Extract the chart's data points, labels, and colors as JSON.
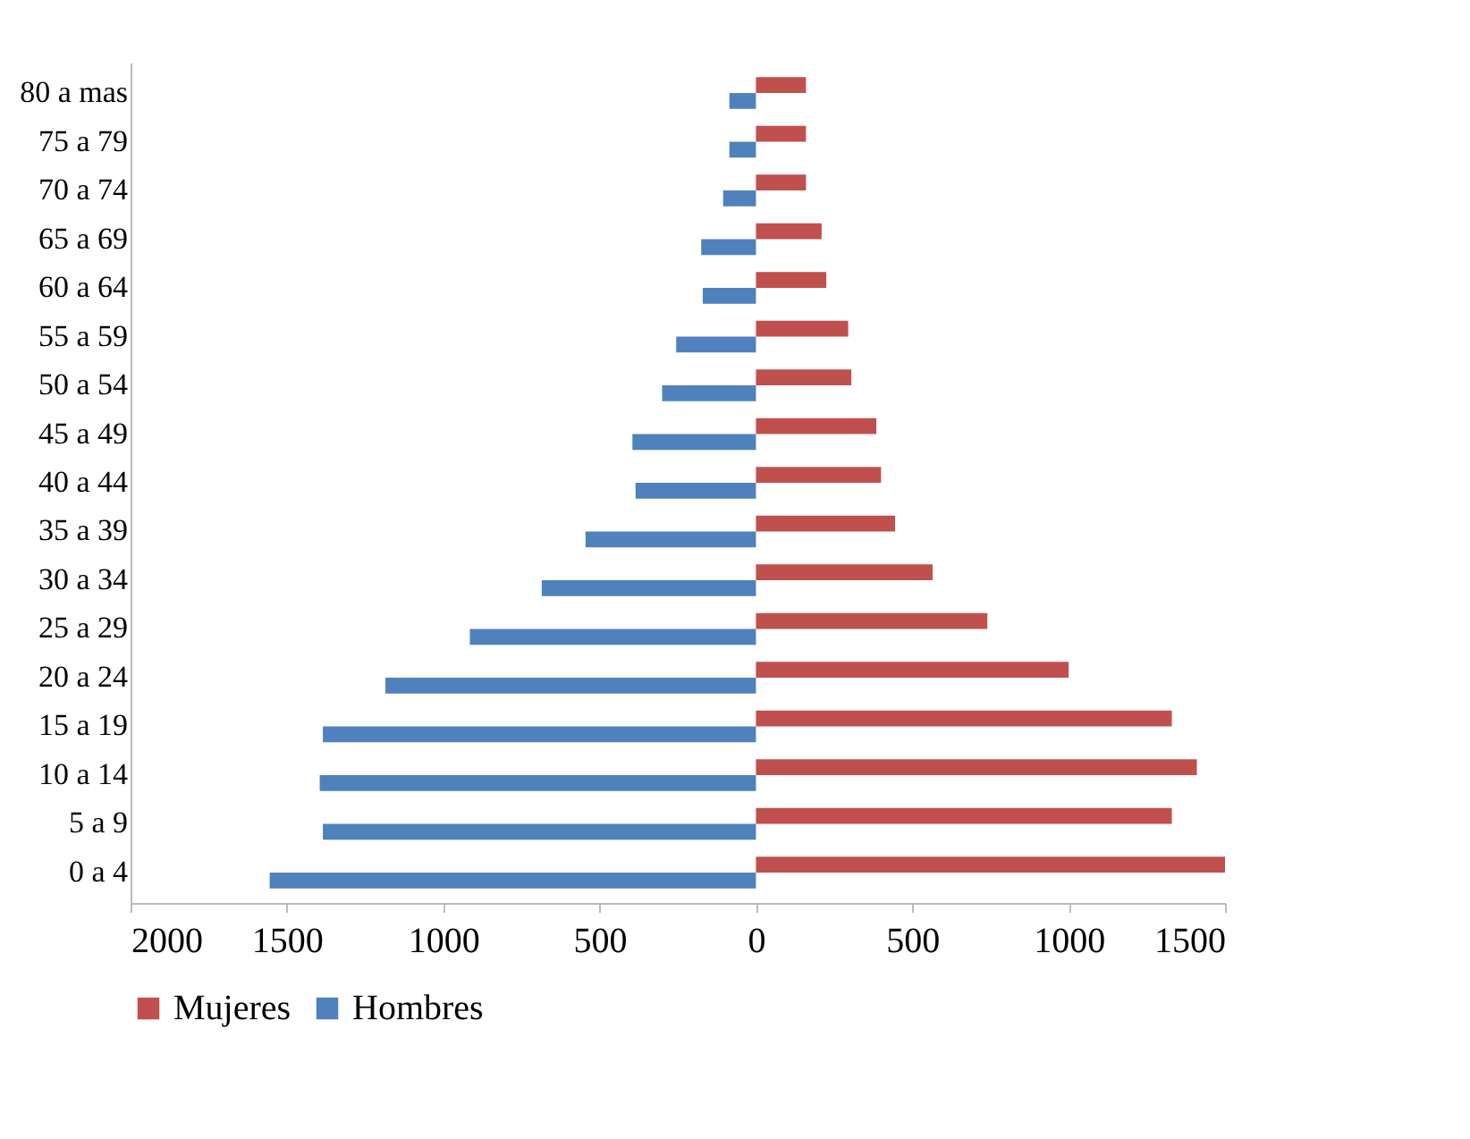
{
  "chart_data": {
    "type": "bar",
    "orientation": "horizontal",
    "categories": [
      "80 a mas",
      "75 a 79",
      "70 a 74",
      "65 a 69",
      "60 a 64",
      "55 a 59",
      "50 a 54",
      "45 a 49",
      "40 a 44",
      "35 a 39",
      "30 a 34",
      "25 a 29",
      "20 a 24",
      "15 a 19",
      "10 a 14",
      "5 a 9",
      "0 a 4"
    ],
    "series": [
      {
        "name": "Mujeres",
        "color": "#c0504d",
        "values": [
          160,
          160,
          160,
          210,
          225,
          295,
          305,
          385,
          400,
          445,
          565,
          740,
          1000,
          1330,
          1410,
          1330,
          1500
        ]
      },
      {
        "name": "Hombres",
        "color": "#4f81bd",
        "values": [
          -85,
          -85,
          -105,
          -175,
          -170,
          -255,
          -300,
          -395,
          -385,
          -545,
          -685,
          -915,
          -1185,
          -1385,
          -1395,
          -1385,
          -1555
        ]
      }
    ],
    "xlim": [
      -2000,
      1500
    ],
    "xticks": [
      {
        "value": -2000,
        "label": "2000"
      },
      {
        "value": -1500,
        "label": "1500"
      },
      {
        "value": -1000,
        "label": "1000"
      },
      {
        "value": -500,
        "label": "500"
      },
      0,
      500,
      1000,
      1500
    ],
    "grid": false,
    "legend": "bottom"
  }
}
